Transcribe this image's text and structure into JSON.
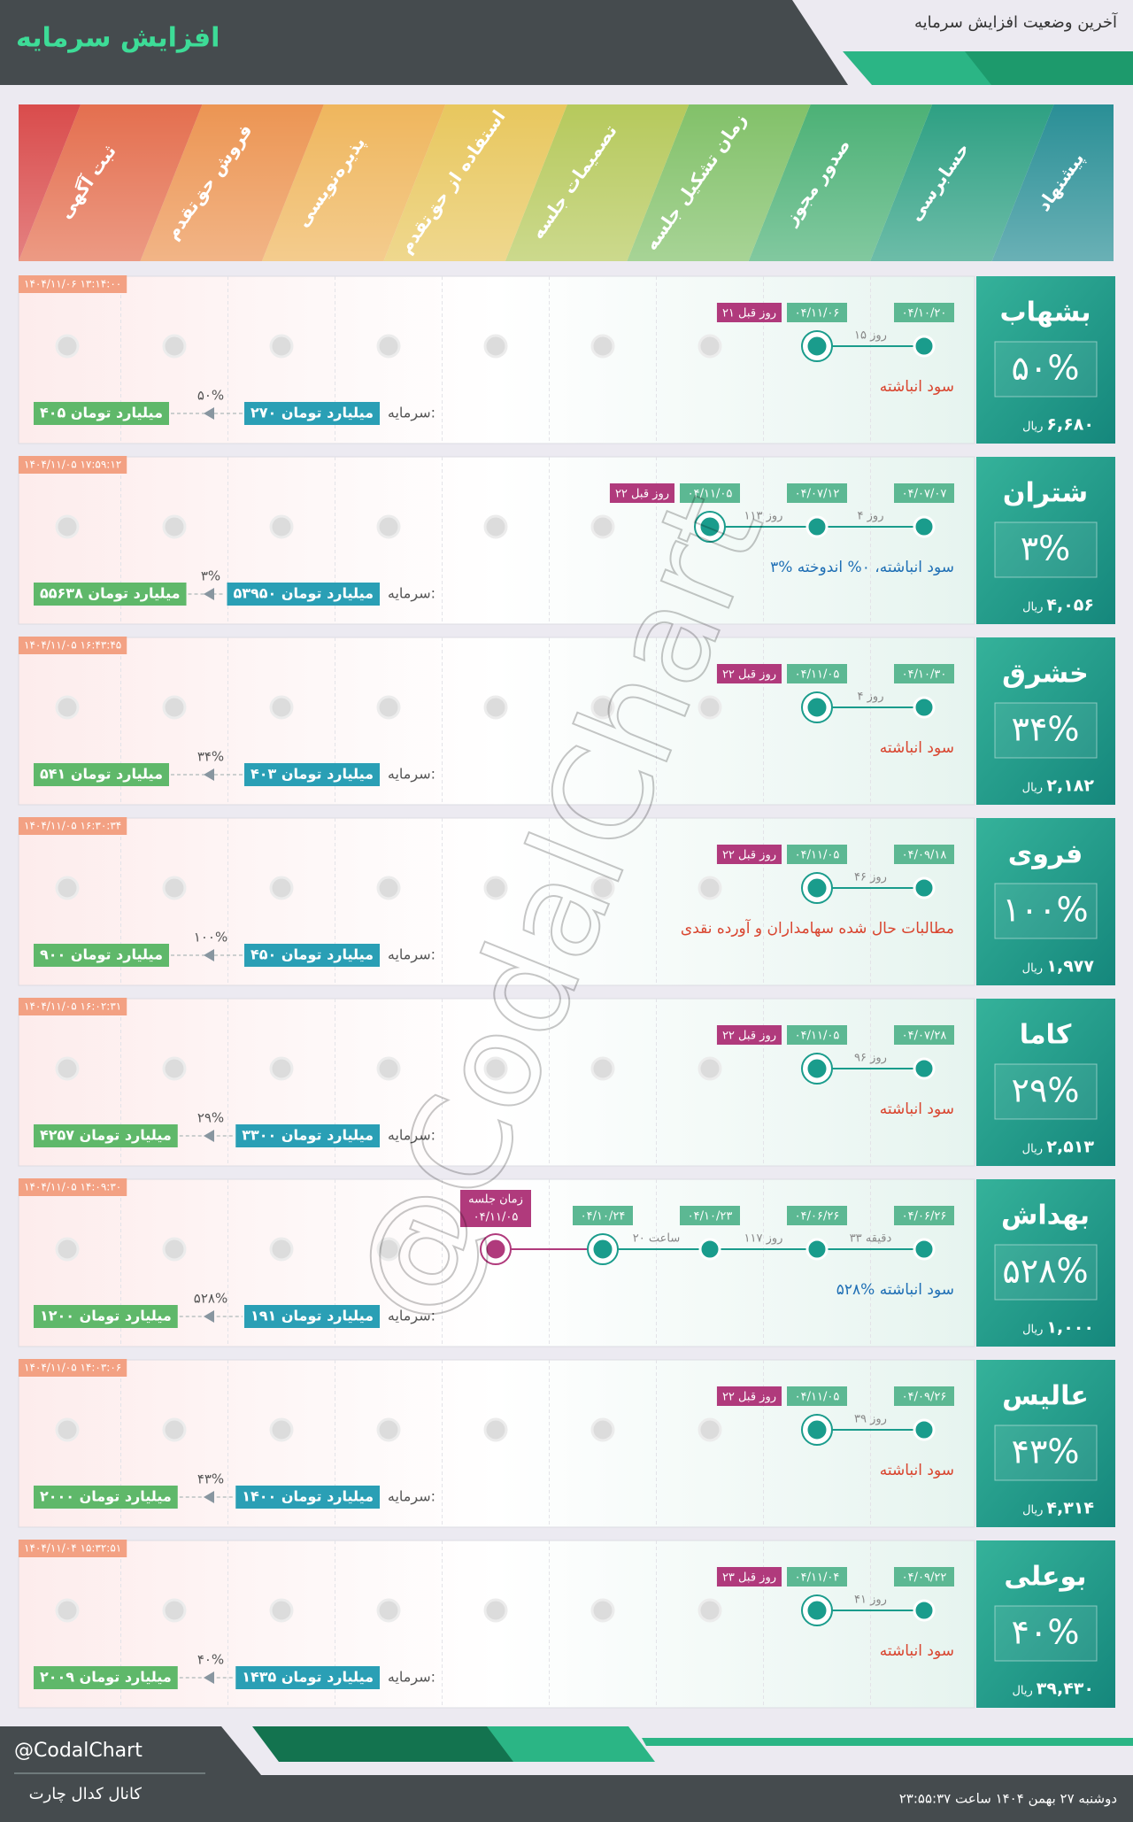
{
  "header": {
    "title": "افزایش سرمایه",
    "subtitle": "آخرین وضعیت افزایش سرمایه"
  },
  "stages": [
    "پیشنهاد",
    "حسابرسی",
    "صدور مجوز",
    "زمان تشکیل جلسه",
    "تصمیمات جلسه",
    "استفاده از حق‌تقدم",
    "پذیره‌نویسی",
    "فروش حق‌تقدم",
    "ثبت آگهی"
  ],
  "labels": {
    "rial": "ریال",
    "capital": "سرمایه:"
  },
  "rows": [
    {
      "name": "بشهاب",
      "percent": "۵۰%",
      "price": "۶,۶۸۰",
      "timestamp": "۱۴۰۴/۱۱/۰۶ ۱۳:۱۴:۰۰",
      "dates": [
        "۰۴/۱۰/۲۰",
        "۰۴/۱۱/۰۶"
      ],
      "gaps": [
        "۱۵ روز"
      ],
      "ago": "۲۱ روز قبل",
      "note": "سود انباشته",
      "note_color": "#d9452f",
      "capital_from": "۲۷۰ میلیارد تومان",
      "capital_to": "۴۰۵ میلیارد تومان",
      "capital_pct": "۵۰%"
    },
    {
      "name": "شتران",
      "percent": "۳%",
      "price": "۴,۰۵۶",
      "timestamp": "۱۴۰۴/۱۱/۰۵ ۱۷:۵۹:۱۲",
      "dates": [
        "۰۴/۰۷/۰۷",
        "۰۴/۰۷/۱۲",
        "۰۴/۱۱/۰۵"
      ],
      "gaps": [
        "۴ روز",
        "۱۱۳ روز"
      ],
      "ago": "۲۲ روز قبل",
      "note": "۳% سود انباشته، ۰% اندوخته",
      "note_color": "#1f6fb5",
      "capital_from": "۵۳۹۵۰ میلیارد تومان",
      "capital_to": "۵۵۶۳۸ میلیارد تومان",
      "capital_pct": "۳%"
    },
    {
      "name": "خشرق",
      "percent": "۳۴%",
      "price": "۲,۱۸۲",
      "timestamp": "۱۴۰۴/۱۱/۰۵ ۱۶:۴۳:۴۵",
      "dates": [
        "۰۴/۱۰/۳۰",
        "۰۴/۱۱/۰۵"
      ],
      "gaps": [
        "۴ روز"
      ],
      "ago": "۲۲ روز قبل",
      "note": "سود انباشته",
      "note_color": "#d9452f",
      "capital_from": "۴۰۳ میلیارد تومان",
      "capital_to": "۵۴۱ میلیارد تومان",
      "capital_pct": "۳۴%"
    },
    {
      "name": "فروی",
      "percent": "۱۰۰%",
      "price": "۱,۹۷۷",
      "timestamp": "۱۴۰۴/۱۱/۰۵ ۱۶:۳۰:۳۴",
      "dates": [
        "۰۴/۰۹/۱۸",
        "۰۴/۱۱/۰۵"
      ],
      "gaps": [
        "۴۶ روز"
      ],
      "ago": "۲۲ روز قبل",
      "note": "مطالبات حال شده سهامداران و آورده نقدی",
      "note_color": "#d9452f",
      "capital_from": "۴۵۰ میلیارد تومان",
      "capital_to": "۹۰۰ میلیارد تومان",
      "capital_pct": "۱۰۰%"
    },
    {
      "name": "کاما",
      "percent": "۲۹%",
      "price": "۲,۵۱۳",
      "timestamp": "۱۴۰۴/۱۱/۰۵ ۱۶:۰۲:۳۱",
      "dates": [
        "۰۴/۰۷/۲۸",
        "۰۴/۱۱/۰۵"
      ],
      "gaps": [
        "۹۶ روز"
      ],
      "ago": "۲۲ روز قبل",
      "note": "سود انباشته",
      "note_color": "#d9452f",
      "capital_from": "۳۳۰۰ میلیارد تومان",
      "capital_to": "۴۲۵۷ میلیارد تومان",
      "capital_pct": "۲۹%"
    },
    {
      "name": "بهداش",
      "percent": "۵۲۸%",
      "price": "۱,۰۰۰",
      "timestamp": "۱۴۰۴/۱۱/۰۵ ۱۴:۰۹:۳۰",
      "dates": [
        "۰۴/۰۶/۲۶",
        "۰۴/۰۶/۲۶",
        "۰۴/۱۰/۲۳",
        "۰۴/۱۰/۲۴"
      ],
      "gaps": [
        "۳۳ دقیقه",
        "۱۱۷ روز",
        "۲۰ ساعت"
      ],
      "meeting": {
        "label": "زمان جلسه",
        "date": "۰۴/۱۱/۰۵"
      },
      "note": "۵۲۸% سود انباشته",
      "note_color": "#1f6fb5",
      "capital_from": "۱۹۱ میلیارد تومان",
      "capital_to": "۱۲۰۰ میلیارد تومان",
      "capital_pct": "۵۲۸%"
    },
    {
      "name": "عالیس",
      "percent": "۴۳%",
      "price": "۴,۳۱۴",
      "timestamp": "۱۴۰۴/۱۱/۰۵ ۱۴:۰۳:۰۶",
      "dates": [
        "۰۴/۰۹/۲۶",
        "۰۴/۱۱/۰۵"
      ],
      "gaps": [
        "۳۹ روز"
      ],
      "ago": "۲۲ روز قبل",
      "note": "سود انباشته",
      "note_color": "#d9452f",
      "capital_from": "۱۴۰۰ میلیارد تومان",
      "capital_to": "۲۰۰۰ میلیارد تومان",
      "capital_pct": "۴۳%"
    },
    {
      "name": "بوعلی",
      "percent": "۴۰%",
      "price": "۳۹,۴۳۰",
      "timestamp": "۱۴۰۴/۱۱/۰۴ ۱۵:۳۲:۵۱",
      "dates": [
        "۰۴/۰۹/۲۲",
        "۰۴/۱۱/۰۴"
      ],
      "gaps": [
        "۴۱ روز"
      ],
      "ago": "۲۳ روز قبل",
      "note": "سود انباشته",
      "note_color": "#d9452f",
      "capital_from": "۱۴۳۵ میلیارد تومان",
      "capital_to": "۲۰۰۹ میلیارد تومان",
      "capital_pct": "۴۰%"
    }
  ],
  "watermark": "@CodalChart",
  "footer": {
    "handle": "@CodalChart",
    "channel": "کانال کدال چارت",
    "datetime": "دوشنبه ۲۷ بهمن ۱۴۰۴ ساعت ۲۳:۵۵:۳۷"
  }
}
